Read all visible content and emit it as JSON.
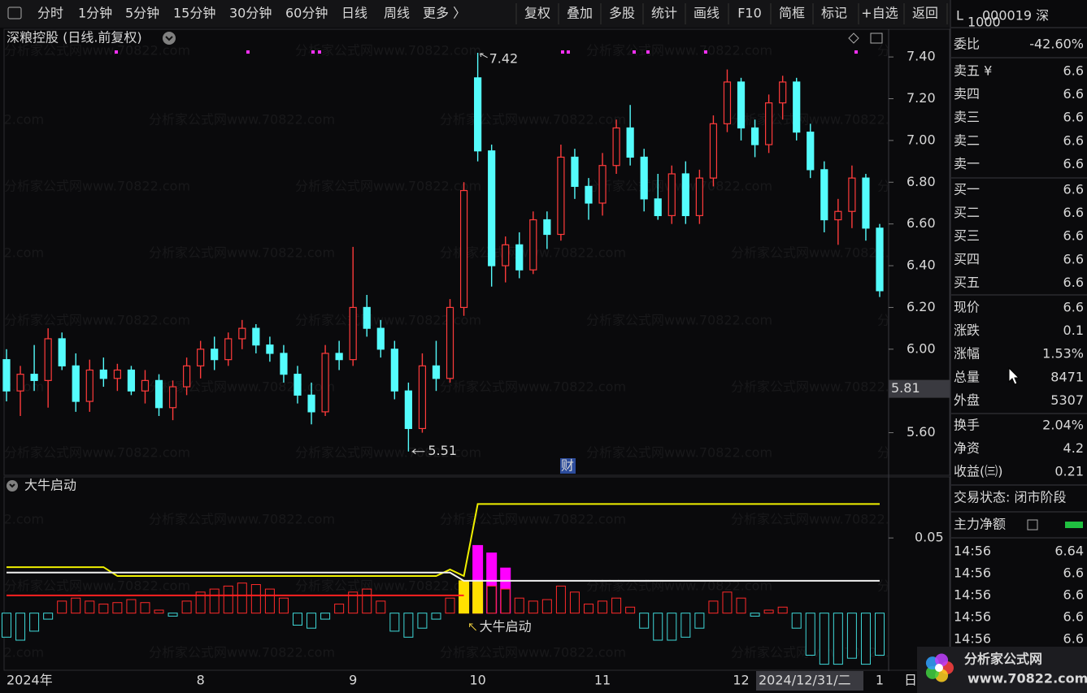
{
  "toolbar": {
    "periods": [
      {
        "label": "分时"
      },
      {
        "label": "1分钟"
      },
      {
        "label": "5分钟"
      },
      {
        "label": "15分钟"
      },
      {
        "label": "30分钟"
      },
      {
        "label": "60分钟"
      },
      {
        "label": "日线",
        "active": true
      },
      {
        "label": "周线"
      },
      {
        "label": "更多 〉"
      }
    ],
    "tools": [
      "复权",
      "叠加",
      "多股",
      "统计",
      "画线",
      "F10",
      "简框",
      "标记",
      "+自选",
      "返回"
    ]
  },
  "chart_data": [
    {
      "type": "candlestick",
      "title": "深粮控股 (日线.前复权)",
      "categories": [
        "2024年",
        null,
        null,
        null,
        null,
        null,
        null,
        null,
        null,
        null,
        null,
        null,
        null,
        null,
        "8",
        null,
        null,
        null,
        null,
        null,
        null,
        null,
        null,
        null,
        null,
        "9",
        null,
        null,
        null,
        null,
        null,
        null,
        null,
        null,
        "10",
        null,
        null,
        null,
        null,
        null,
        null,
        null,
        null,
        "11",
        null,
        null,
        null,
        null,
        null,
        null,
        null,
        null,
        null,
        "12",
        null,
        null,
        null,
        null,
        null,
        null,
        null,
        null,
        null,
        "1"
      ],
      "ohlc": [
        [
          5.95,
          6.0,
          5.75,
          5.8
        ],
        [
          5.8,
          5.92,
          5.68,
          5.88
        ],
        [
          5.88,
          6.02,
          5.8,
          5.85
        ],
        [
          5.85,
          6.1,
          5.72,
          6.05
        ],
        [
          6.05,
          6.08,
          5.9,
          5.92
        ],
        [
          5.92,
          5.98,
          5.7,
          5.75
        ],
        [
          5.75,
          5.95,
          5.7,
          5.9
        ],
        [
          5.9,
          5.96,
          5.82,
          5.86
        ],
        [
          5.86,
          5.93,
          5.8,
          5.9
        ],
        [
          5.9,
          5.92,
          5.78,
          5.8
        ],
        [
          5.8,
          5.9,
          5.74,
          5.85
        ],
        [
          5.85,
          5.88,
          5.68,
          5.72
        ],
        [
          5.72,
          5.85,
          5.66,
          5.82
        ],
        [
          5.82,
          5.96,
          5.78,
          5.92
        ],
        [
          5.92,
          6.04,
          5.86,
          6.0
        ],
        [
          6.0,
          6.06,
          5.9,
          5.95
        ],
        [
          5.95,
          6.08,
          5.92,
          6.05
        ],
        [
          6.05,
          6.14,
          6.0,
          6.1
        ],
        [
          6.1,
          6.12,
          5.98,
          6.02
        ],
        [
          6.02,
          6.06,
          5.94,
          5.98
        ],
        [
          5.98,
          6.02,
          5.84,
          5.88
        ],
        [
          5.88,
          5.92,
          5.74,
          5.78
        ],
        [
          5.78,
          5.84,
          5.64,
          5.7
        ],
        [
          5.7,
          6.02,
          5.68,
          5.98
        ],
        [
          5.98,
          6.04,
          5.9,
          5.95
        ],
        [
          5.95,
          6.49,
          5.92,
          6.2
        ],
        [
          6.2,
          6.26,
          6.06,
          6.1
        ],
        [
          6.1,
          6.14,
          5.96,
          6.0
        ],
        [
          6.0,
          6.04,
          5.76,
          5.8
        ],
        [
          5.8,
          5.84,
          5.51,
          5.62
        ],
        [
          5.62,
          5.98,
          5.6,
          5.92
        ],
        [
          5.92,
          6.04,
          5.8,
          5.86
        ],
        [
          5.86,
          6.24,
          5.84,
          6.2
        ],
        [
          6.2,
          6.8,
          6.16,
          6.76
        ],
        [
          7.3,
          7.42,
          6.9,
          6.95
        ],
        [
          6.95,
          6.98,
          6.3,
          6.4
        ],
        [
          6.4,
          6.54,
          6.32,
          6.5
        ],
        [
          6.5,
          6.56,
          6.34,
          6.38
        ],
        [
          6.38,
          6.66,
          6.36,
          6.62
        ],
        [
          6.62,
          6.66,
          6.48,
          6.55
        ],
        [
          6.55,
          6.98,
          6.52,
          6.92
        ],
        [
          6.92,
          6.96,
          6.72,
          6.78
        ],
        [
          6.78,
          6.82,
          6.62,
          6.7
        ],
        [
          6.7,
          6.94,
          6.64,
          6.88
        ],
        [
          6.88,
          7.1,
          6.84,
          7.06
        ],
        [
          7.06,
          7.17,
          6.88,
          6.92
        ],
        [
          6.92,
          6.96,
          6.66,
          6.72
        ],
        [
          6.72,
          6.84,
          6.62,
          6.64
        ],
        [
          6.64,
          6.88,
          6.6,
          6.84
        ],
        [
          6.84,
          6.9,
          6.6,
          6.64
        ],
        [
          6.64,
          6.86,
          6.6,
          6.82
        ],
        [
          6.82,
          7.12,
          6.78,
          7.08
        ],
        [
          7.08,
          7.34,
          7.04,
          7.28
        ],
        [
          7.28,
          7.3,
          7.0,
          7.06
        ],
        [
          7.06,
          7.1,
          6.92,
          6.98
        ],
        [
          6.98,
          7.22,
          6.94,
          7.18
        ],
        [
          7.18,
          7.31,
          7.1,
          7.28
        ],
        [
          7.28,
          7.3,
          7.0,
          7.04
        ],
        [
          7.04,
          7.08,
          6.82,
          6.86
        ],
        [
          6.86,
          6.9,
          6.56,
          6.62
        ],
        [
          6.62,
          6.72,
          6.5,
          6.66
        ],
        [
          6.66,
          6.88,
          6.58,
          6.82
        ],
        [
          6.82,
          6.84,
          6.52,
          6.58
        ],
        [
          6.58,
          6.6,
          6.25,
          6.28
        ]
      ],
      "up_color": "#ff3b3b",
      "down_color": "#54fcfc",
      "ylim": [
        5.396,
        7.525
      ],
      "yticks": [
        {
          "value": 5.6,
          "label": "5.60"
        },
        {
          "value": 5.8,
          "label": "5.80"
        },
        {
          "value": 6.0,
          "label": "6.00"
        },
        {
          "value": 6.2,
          "label": "6.20"
        },
        {
          "value": 6.4,
          "label": "6.40"
        },
        {
          "value": 6.6,
          "label": "6.60"
        },
        {
          "value": 6.8,
          "label": "6.80"
        },
        {
          "value": 7.0,
          "label": "7.00"
        },
        {
          "value": 7.2,
          "label": "7.20"
        },
        {
          "value": 7.4,
          "label": "7.40"
        }
      ],
      "cursor": {
        "value": 5.81,
        "date": "2024/12/31/二"
      },
      "marker": "财",
      "period_button": "日"
    },
    {
      "type": "bar",
      "title": "大牛启动",
      "values": [
        -0.016,
        -0.018,
        -0.012,
        -0.004,
        0.008,
        0.01,
        0.008,
        0.006,
        0.007,
        0.009,
        0.007,
        0.002,
        -0.002,
        0.008,
        0.014,
        0.016,
        0.018,
        0.02,
        0.019,
        0.016,
        0.01,
        -0.008,
        -0.01,
        -0.004,
        0.006,
        0.014,
        0.016,
        0.008,
        -0.012,
        -0.016,
        -0.01,
        -0.004,
        0.01,
        0.014,
        0.02,
        0.018,
        0.016,
        0.01,
        0.008,
        0.009,
        0.018,
        0.014,
        0.006,
        0.008,
        0.01,
        0.004,
        -0.01,
        -0.018,
        -0.018,
        -0.016,
        -0.01,
        0.008,
        0.014,
        0.01,
        -0.002,
        0.002,
        0.004,
        -0.01,
        -0.028,
        -0.034,
        -0.034,
        -0.03,
        -0.034,
        -0.028
      ],
      "up_color": "#ff2a2a",
      "down_color": "#3fd8d8",
      "ylim": [
        -0.038,
        0.089
      ],
      "yticks": [
        0.05
      ],
      "bars": [
        {
          "color": "#ff00ff",
          "x": [
            34,
            35,
            36
          ],
          "values": [
            0.045,
            0.04,
            0.03
          ]
        },
        {
          "color": "#ffe000",
          "x": [
            33,
            34
          ],
          "values": [
            0.0215,
            0.0215
          ]
        }
      ],
      "series": [
        {
          "color": "#f0f000",
          "x": [
            0,
            7,
            8,
            29,
            31,
            32,
            33,
            34,
            63
          ],
          "values": [
            0.0306,
            0.0306,
            0.0247,
            0.0247,
            0.0247,
            0.029,
            0.0247,
            0.0726,
            0.0726
          ]
        },
        {
          "color": "#f0f0f0",
          "x": [
            0,
            32,
            33,
            63
          ],
          "values": [
            0.027,
            0.027,
            0.0215,
            0.0215
          ]
        },
        {
          "color": "#ff2020",
          "x": [
            0,
            33
          ],
          "values": [
            0.0118,
            0.0118
          ]
        }
      ]
    }
  ],
  "sidebar": {
    "flag": "L",
    "flag_sub": "1000",
    "code": "000019 深",
    "sections": [
      [
        {
          "label": "委比",
          "value": "-42.60%",
          "color": "#2ad02a"
        }
      ],
      [
        {
          "label": "卖五 ¥",
          "value": "6.6",
          "color": "#ff4a4a"
        },
        {
          "label": "卖四",
          "value": "6.6",
          "color": "#ff4a4a"
        },
        {
          "label": "卖三",
          "value": "6.6",
          "color": "#ff4a4a"
        },
        {
          "label": "卖二",
          "value": "6.6",
          "color": "#ff4a4a"
        },
        {
          "label": "卖一",
          "value": "6.6",
          "color": "#ff4a4a"
        }
      ],
      [
        {
          "label": "买一",
          "value": "6.6",
          "color": "#ff4a4a"
        },
        {
          "label": "买二",
          "value": "6.6",
          "color": "#ff4a4a"
        },
        {
          "label": "买三",
          "value": "6.6",
          "color": "#ff4a4a"
        },
        {
          "label": "买四",
          "value": "6.6",
          "color": "#ff4a4a"
        },
        {
          "label": "买五",
          "value": "6.6",
          "color": "#ff4a4a"
        }
      ],
      [
        {
          "label": "现价",
          "value": "6.6",
          "color": "#ff4a4a"
        },
        {
          "label": "涨跌",
          "value": "0.1",
          "color": "#ff4a4a"
        },
        {
          "label": "涨幅",
          "value": "1.53%",
          "color": "#ff4a4a"
        },
        {
          "label": "总量",
          "value": "8471",
          "color": "#f0c040"
        },
        {
          "label": "外盘",
          "value": "5307",
          "color": "#ff4a4a"
        }
      ],
      [
        {
          "label": "换手",
          "value": "2.04%",
          "color": "#e6e6e6"
        },
        {
          "label": "净资",
          "value": "4.2",
          "color": "#e6e6e6"
        },
        {
          "label": "收益(㈢)",
          "value": "0.21",
          "color": "#e6e6e6"
        }
      ]
    ],
    "status": "交易状态: 闭市阶段",
    "main_force": "主力净额",
    "ticks": [
      {
        "time": "14:56",
        "price": "6.64"
      },
      {
        "time": "14:56",
        "price": "6.6"
      },
      {
        "time": "14:56",
        "price": "6.6"
      },
      {
        "time": "14:56",
        "price": "6.6"
      },
      {
        "time": "14:56",
        "price": "6.6"
      }
    ]
  },
  "watermark": "分析家公式网www.70822.com",
  "logo": {
    "title": "分析家公式网",
    "url": "www.70822.com"
  }
}
